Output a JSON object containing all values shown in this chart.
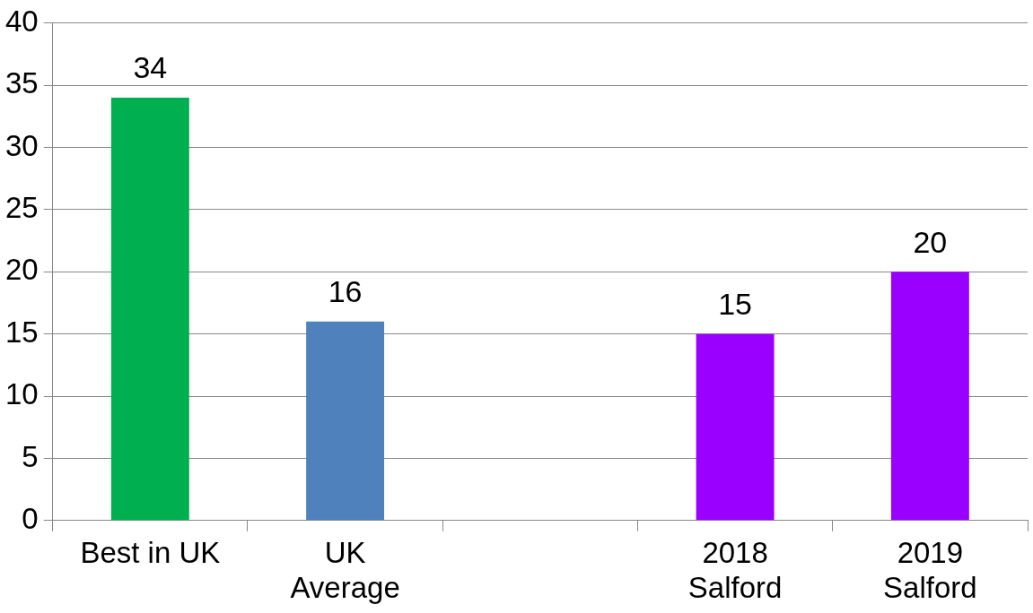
{
  "chart_data": {
    "type": "bar",
    "categories": [
      "Best in UK",
      "UK\nAverage",
      null,
      "2018\nSalford",
      "2019\nSalford"
    ],
    "values": [
      34,
      16,
      null,
      15,
      20
    ],
    "colors": [
      "#00b050",
      "#4f81bd",
      "#4f81bd",
      "#9900ff",
      "#9900ff"
    ],
    "ylim": [
      0,
      40
    ],
    "yticks": [
      0,
      5,
      10,
      15,
      20,
      25,
      30,
      35,
      40
    ],
    "grid": "y",
    "data_labels": true,
    "legend": false
  }
}
